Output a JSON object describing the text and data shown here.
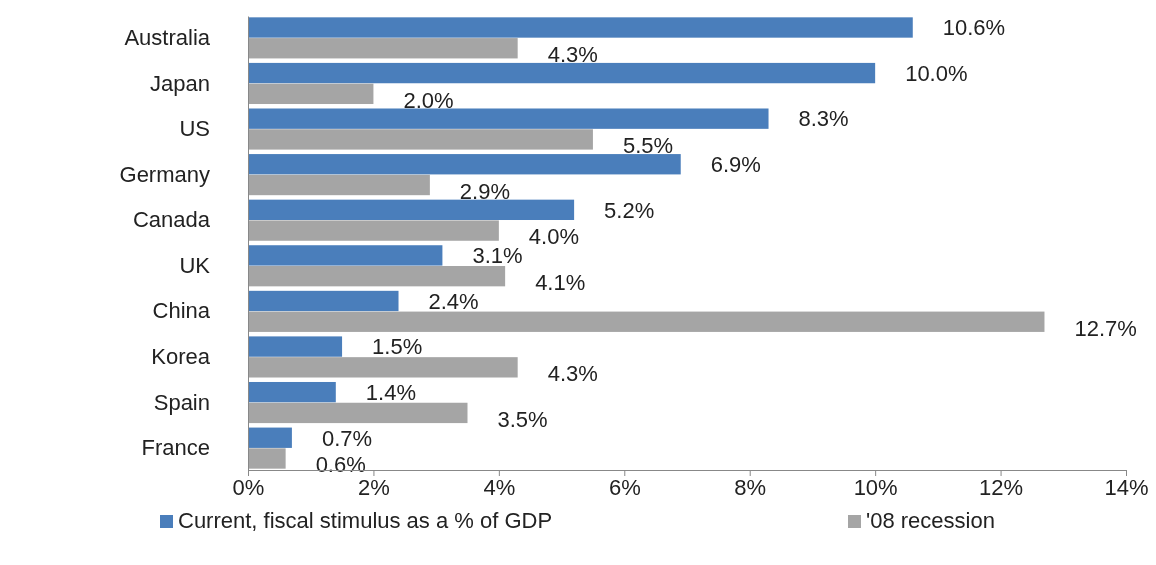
{
  "chart_data": {
    "type": "bar",
    "orientation": "horizontal",
    "categories": [
      "Australia",
      "Japan",
      "US",
      "Germany",
      "Canada",
      "UK",
      "China",
      "Korea",
      "Spain",
      "France"
    ],
    "series": [
      {
        "name": "Current, fiscal stimulus as a % of GDP",
        "color": "#4a7ebb",
        "values": [
          10.6,
          10.0,
          8.3,
          6.9,
          5.2,
          3.1,
          2.4,
          1.5,
          1.4,
          0.7
        ],
        "value_labels": [
          "10.6%",
          "10.0%",
          "8.3%",
          "6.9%",
          "5.2%",
          "3.1%",
          "2.4%",
          "1.5%",
          "1.4%",
          "0.7%"
        ]
      },
      {
        "name": "'08 recession",
        "color": "#a5a5a5",
        "values": [
          4.3,
          2.0,
          5.5,
          2.9,
          4.0,
          4.1,
          12.7,
          4.3,
          3.5,
          0.6
        ],
        "value_labels": [
          "4.3%",
          "2.0%",
          "5.5%",
          "2.9%",
          "4.0%",
          "4.1%",
          "12.7%",
          "4.3%",
          "3.5%",
          "0.6%"
        ]
      }
    ],
    "xlim": [
      0,
      14
    ],
    "xticks": [
      {
        "value": 0,
        "label": "0%"
      },
      {
        "value": 2,
        "label": "2%"
      },
      {
        "value": 4,
        "label": "4%"
      },
      {
        "value": 6,
        "label": "6%"
      },
      {
        "value": 8,
        "label": "8%"
      },
      {
        "value": 10,
        "label": "10%"
      },
      {
        "value": 12,
        "label": "12%"
      },
      {
        "value": 14,
        "label": "14%"
      }
    ],
    "legend": "bottom",
    "grid": false
  }
}
